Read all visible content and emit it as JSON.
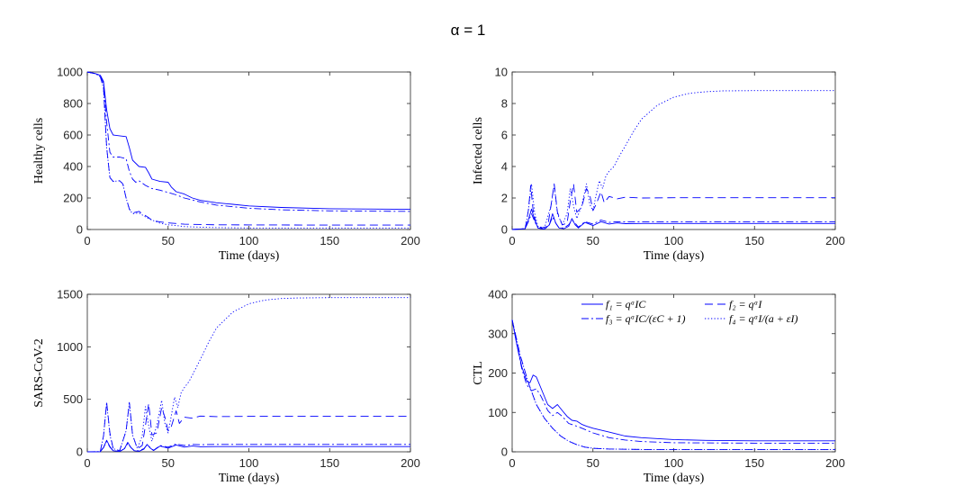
{
  "figure": {
    "title": "α = 1",
    "line_color": "#0000FF",
    "legend": [
      {
        "key": "f1",
        "style": "solid",
        "label": "f₁ = qᵅIC"
      },
      {
        "key": "f2",
        "style": "dashed",
        "label": "f₂ = qᵅI"
      },
      {
        "key": "f3",
        "style": "dashdot",
        "label": "f₃ = qᵅIC/(εC + 1)"
      },
      {
        "key": "f4",
        "style": "dotted",
        "label": "f₄ = qᵅI/(a + εI)"
      }
    ]
  },
  "chart_data": [
    {
      "type": "line",
      "id": "healthy",
      "xlabel": "Time (days)",
      "ylabel": "Healthy cells",
      "xlim": [
        0,
        200
      ],
      "ylim": [
        0,
        1000
      ],
      "xticks": [
        0,
        50,
        100,
        150,
        200
      ],
      "yticks": [
        0,
        200,
        400,
        600,
        800,
        1000
      ],
      "series": [
        {
          "name": "f1",
          "x": [
            0,
            5,
            8,
            10,
            12,
            14,
            16,
            20,
            24,
            26,
            28,
            32,
            36,
            38,
            40,
            45,
            50,
            52,
            55,
            60,
            65,
            70,
            80,
            90,
            100,
            120,
            150,
            200
          ],
          "y": [
            1000,
            990,
            980,
            940,
            760,
            640,
            600,
            595,
            590,
            520,
            440,
            400,
            395,
            360,
            320,
            305,
            300,
            270,
            240,
            225,
            200,
            185,
            170,
            160,
            150,
            140,
            132,
            128
          ]
        },
        {
          "name": "f2",
          "x": [
            0,
            5,
            8,
            10,
            12,
            14,
            16,
            20,
            22,
            24,
            26,
            28,
            32,
            35,
            38,
            40,
            45,
            50,
            55,
            60,
            70,
            80,
            100,
            150,
            200
          ],
          "y": [
            1000,
            990,
            970,
            900,
            520,
            330,
            305,
            310,
            290,
            200,
            130,
            105,
            115,
            95,
            75,
            58,
            48,
            42,
            38,
            34,
            32,
            30,
            29,
            28,
            28
          ]
        },
        {
          "name": "f3",
          "x": [
            0,
            5,
            8,
            10,
            12,
            14,
            16,
            20,
            24,
            26,
            28,
            30,
            32,
            36,
            40,
            45,
            50,
            55,
            60,
            70,
            80,
            100,
            120,
            150,
            200
          ],
          "y": [
            1000,
            990,
            975,
            930,
            680,
            490,
            460,
            460,
            450,
            370,
            320,
            300,
            310,
            280,
            260,
            250,
            235,
            220,
            200,
            175,
            155,
            135,
            125,
            118,
            115
          ]
        },
        {
          "name": "f4",
          "x": [
            0,
            5,
            8,
            10,
            12,
            14,
            16,
            20,
            22,
            24,
            26,
            28,
            32,
            36,
            40,
            45,
            50,
            55,
            60,
            70,
            80,
            100,
            150,
            200
          ],
          "y": [
            1000,
            990,
            970,
            900,
            520,
            330,
            305,
            310,
            290,
            200,
            130,
            100,
            105,
            80,
            60,
            40,
            30,
            25,
            18,
            15,
            12,
            10,
            10,
            10
          ]
        }
      ]
    },
    {
      "type": "line",
      "id": "infected",
      "xlabel": "Time (days)",
      "ylabel": "Infected cells",
      "xlim": [
        0,
        200
      ],
      "ylim": [
        0,
        10
      ],
      "xticks": [
        0,
        50,
        100,
        150,
        200
      ],
      "yticks": [
        0,
        2,
        4,
        6,
        8,
        10
      ],
      "series": [
        {
          "name": "f1",
          "x": [
            0,
            8,
            10,
            12,
            14,
            16,
            20,
            23,
            25,
            27,
            29,
            32,
            35,
            37,
            39,
            41,
            45,
            50,
            55,
            60,
            65,
            70,
            80,
            100,
            150,
            200
          ],
          "y": [
            0,
            0.05,
            0.6,
            1.3,
            0.6,
            0.1,
            0.02,
            0.3,
            1.0,
            0.4,
            0.1,
            0.05,
            0.2,
            0.7,
            0.3,
            0.1,
            0.45,
            0.25,
            0.5,
            0.35,
            0.42,
            0.37,
            0.38,
            0.38,
            0.38,
            0.38
          ]
        },
        {
          "name": "f2",
          "x": [
            0,
            8,
            10,
            11.5,
            13,
            15,
            18,
            22,
            24,
            26,
            28,
            31,
            34,
            36,
            38,
            40,
            43,
            46,
            48,
            50,
            52,
            55,
            57,
            60,
            65,
            70,
            80,
            100,
            150,
            200
          ],
          "y": [
            0,
            0.05,
            1.2,
            2.8,
            1.2,
            0.3,
            0.1,
            0.2,
            1.5,
            2.9,
            1.1,
            0.3,
            0.4,
            1.8,
            2.9,
            1.1,
            1.4,
            2.6,
            2.2,
            1.2,
            1.6,
            2.4,
            1.7,
            2.1,
            1.95,
            2.05,
            2.0,
            2.02,
            2.02,
            2.02
          ]
        },
        {
          "name": "f3",
          "x": [
            0,
            8,
            10,
            12,
            14,
            16,
            20,
            23,
            25,
            27,
            29,
            32,
            35,
            37,
            39,
            41,
            45,
            50,
            55,
            60,
            65,
            70,
            80,
            100,
            150,
            200
          ],
          "y": [
            0,
            0.05,
            0.5,
            1.0,
            0.5,
            0.1,
            0.02,
            0.3,
            0.8,
            0.4,
            0.1,
            0.1,
            0.3,
            0.6,
            0.4,
            0.15,
            0.5,
            0.35,
            0.6,
            0.45,
            0.5,
            0.48,
            0.48,
            0.48,
            0.48,
            0.48
          ]
        },
        {
          "name": "f4",
          "x": [
            0,
            8,
            10,
            12,
            14,
            16,
            20,
            24,
            26,
            28,
            31,
            34,
            36,
            38,
            40,
            43,
            46,
            48,
            50,
            52,
            54,
            56,
            58,
            60,
            63,
            66,
            70,
            75,
            80,
            90,
            100,
            110,
            120,
            130,
            150,
            200
          ],
          "y": [
            0,
            0.05,
            1.2,
            2.9,
            1.0,
            0.2,
            0.1,
            1.5,
            2.8,
            1.0,
            0.3,
            1.0,
            2.6,
            1.5,
            0.7,
            1.5,
            2.9,
            1.6,
            1.2,
            2.2,
            3.1,
            2.6,
            3.4,
            3.7,
            4.0,
            4.6,
            5.3,
            6.2,
            7.0,
            7.9,
            8.4,
            8.65,
            8.75,
            8.8,
            8.82,
            8.82
          ]
        }
      ]
    },
    {
      "type": "line",
      "id": "sars",
      "xlabel": "Time (days)",
      "ylabel": "SARS-CoV-2",
      "xlim": [
        0,
        200
      ],
      "ylim": [
        0,
        1500
      ],
      "xticks": [
        0,
        50,
        100,
        150,
        200
      ],
      "yticks": [
        0,
        500,
        1000,
        1500
      ],
      "series": [
        {
          "name": "f1",
          "x": [
            0,
            8,
            10,
            12,
            14,
            16,
            20,
            23,
            25,
            27,
            29,
            32,
            35,
            37,
            39,
            41,
            45,
            50,
            55,
            60,
            65,
            70,
            80,
            100,
            150,
            200
          ],
          "y": [
            0,
            2,
            40,
            110,
            50,
            10,
            3,
            30,
            90,
            40,
            10,
            5,
            25,
            70,
            35,
            12,
            55,
            35,
            65,
            45,
            55,
            48,
            50,
            50,
            50,
            50
          ]
        },
        {
          "name": "f2",
          "x": [
            0,
            8,
            10,
            12,
            14,
            16,
            20,
            24,
            26,
            28,
            31,
            34,
            36,
            38,
            40,
            43,
            46,
            48,
            50,
            52,
            55,
            57,
            60,
            65,
            70,
            80,
            100,
            150,
            200
          ],
          "y": [
            0,
            2,
            150,
            470,
            180,
            30,
            10,
            200,
            470,
            160,
            30,
            60,
            250,
            460,
            160,
            180,
            420,
            330,
            200,
            240,
            390,
            270,
            330,
            320,
            340,
            335,
            338,
            338,
            338
          ]
        },
        {
          "name": "f3",
          "x": [
            0,
            8,
            10,
            12,
            14,
            16,
            20,
            23,
            25,
            27,
            29,
            32,
            35,
            37,
            39,
            41,
            45,
            50,
            55,
            60,
            65,
            70,
            80,
            100,
            150,
            200
          ],
          "y": [
            0,
            2,
            40,
            100,
            45,
            10,
            3,
            30,
            80,
            40,
            12,
            10,
            30,
            65,
            40,
            15,
            60,
            45,
            75,
            60,
            70,
            68,
            70,
            70,
            70,
            70
          ]
        },
        {
          "name": "f4",
          "x": [
            0,
            8,
            10,
            12,
            14,
            16,
            20,
            24,
            26,
            28,
            31,
            34,
            36,
            38,
            40,
            43,
            46,
            48,
            50,
            52,
            54,
            56,
            58,
            60,
            63,
            66,
            70,
            75,
            80,
            90,
            100,
            110,
            120,
            130,
            150,
            200
          ],
          "y": [
            0,
            2,
            150,
            470,
            160,
            30,
            10,
            200,
            470,
            160,
            30,
            150,
            430,
            250,
            100,
            250,
            490,
            270,
            180,
            340,
            520,
            420,
            560,
            610,
            670,
            760,
            880,
            1040,
            1180,
            1330,
            1410,
            1445,
            1460,
            1465,
            1468,
            1468
          ]
        }
      ]
    },
    {
      "type": "line",
      "id": "ctl",
      "xlabel": "Time (days)",
      "ylabel": "CTL",
      "xlim": [
        0,
        200
      ],
      "ylim": [
        0,
        400
      ],
      "xticks": [
        0,
        50,
        100,
        150,
        200
      ],
      "yticks": [
        0,
        100,
        200,
        300,
        400
      ],
      "series": [
        {
          "name": "f1",
          "x": [
            0,
            3,
            6,
            9,
            11,
            13,
            15,
            18,
            22,
            25,
            28,
            31,
            34,
            37,
            40,
            43,
            46,
            50,
            55,
            60,
            65,
            70,
            80,
            100,
            120,
            150,
            200
          ],
          "y": [
            335,
            270,
            215,
            180,
            175,
            195,
            190,
            160,
            120,
            110,
            120,
            105,
            90,
            80,
            78,
            70,
            65,
            60,
            55,
            50,
            45,
            40,
            36,
            31,
            29,
            28,
            28
          ]
        },
        {
          "name": "f2",
          "x": [
            0,
            5,
            10,
            15,
            20,
            25,
            30,
            35,
            40,
            45,
            50,
            60,
            80,
            100,
            150,
            200
          ],
          "y": [
            335,
            245,
            175,
            120,
            85,
            60,
            40,
            27,
            18,
            12,
            9,
            7,
            6,
            6,
            6,
            6
          ]
        },
        {
          "name": "f3",
          "x": [
            0,
            3,
            6,
            9,
            12,
            15,
            18,
            22,
            25,
            28,
            31,
            35,
            38,
            42,
            46,
            50,
            55,
            60,
            70,
            80,
            100,
            150,
            200
          ],
          "y": [
            335,
            270,
            210,
            170,
            155,
            160,
            140,
            105,
            92,
            100,
            90,
            72,
            68,
            62,
            55,
            48,
            42,
            36,
            30,
            26,
            23,
            22,
            22
          ]
        },
        {
          "name": "f4",
          "x": [
            0,
            5,
            10,
            15,
            20,
            25,
            30,
            35,
            40,
            45,
            50,
            60,
            80,
            100,
            150,
            200
          ],
          "y": [
            335,
            245,
            175,
            120,
            85,
            60,
            40,
            27,
            18,
            12,
            9,
            7,
            6,
            6,
            6,
            6
          ]
        }
      ]
    }
  ]
}
